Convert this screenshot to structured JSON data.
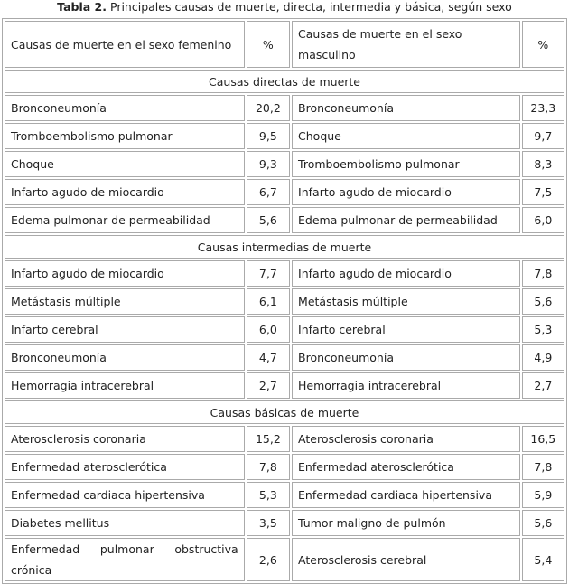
{
  "caption": {
    "label": "Tabla 2.",
    "text": "Principales causas de muerte, directa, intermedia y básica, según sexo"
  },
  "table": {
    "header": [
      "Causas de muerte en el sexo femenino",
      "%",
      "Causas de muerte en el sexo masculino",
      "%"
    ],
    "sections": [
      {
        "title": "Causas directas de muerte",
        "rows": [
          [
            "Bronconeumonía",
            "20,2",
            "Bronconeumonía",
            "23,3"
          ],
          [
            "Tromboembolismo pulmonar",
            "9,5",
            "Choque",
            "9,7"
          ],
          [
            "Choque",
            "9,3",
            "Tromboembolismo pulmonar",
            "8,3"
          ],
          [
            "Infarto agudo de miocardio",
            "6,7",
            "Infarto agudo de miocardio",
            "7,5"
          ],
          [
            "Edema pulmonar de permeabilidad",
            "5,6",
            "Edema pulmonar de permeabilidad",
            "6,0"
          ]
        ]
      },
      {
        "title": "Causas intermedias de muerte",
        "rows": [
          [
            "Infarto agudo de miocardio",
            "7,7",
            "Infarto agudo de miocardio",
            "7,8"
          ],
          [
            "Metástasis múltiple",
            "6,1",
            "Metástasis múltiple",
            "5,6"
          ],
          [
            "Infarto cerebral",
            "6,0",
            "Infarto cerebral",
            "5,3"
          ],
          [
            "Bronconeumonía",
            "4,7",
            "Bronconeumonía",
            "4,9"
          ],
          [
            "Hemorragia intracerebral",
            "2,7",
            "Hemorragia intracerebral",
            "2,7"
          ]
        ]
      },
      {
        "title": "Causas básicas de muerte",
        "rows": [
          [
            "Aterosclerosis coronaria",
            "15,2",
            "Aterosclerosis coronaria",
            "16,5"
          ],
          [
            "Enfermedad aterosclerótica",
            "7,8",
            "Enfermedad aterosclerótica",
            "7,8"
          ],
          [
            "Enfermedad cardiaca hipertensiva",
            "5,3",
            "Enfermedad cardiaca hipertensiva",
            "5,9"
          ],
          [
            "Diabetes mellitus",
            "3,5",
            "Tumor maligno de pulmón",
            "5,6"
          ],
          [
            "Enfermedad pulmonar obstructiva crónica",
            "2,6",
            "Aterosclerosis cerebral",
            "5,4"
          ]
        ]
      }
    ]
  }
}
